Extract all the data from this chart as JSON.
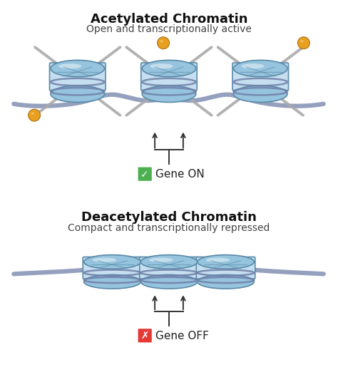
{
  "title_top": "Acetylated Chromatin",
  "subtitle_top": "Open and transcriptionally active",
  "title_bottom": "Deacetylated Chromatin",
  "subtitle_bottom": "Compact and transcriptionally repressed",
  "label_on": "Gene ON",
  "label_off": "Gene OFF",
  "bg_color": "#ffffff",
  "title_color": "#111111",
  "subtitle_color": "#444444",
  "histone_color_light": "#c5dff0",
  "histone_color_mid": "#96c4de",
  "histone_color_dark": "#5a90b5",
  "histone_edge_color": "#5a8aa8",
  "dna_color": "#7080a8",
  "acetyl_color_outer": "#e8a020",
  "acetyl_color_inner": "#f5c060",
  "tail_color": "#aaaaaa",
  "gene_on_bg": "#4caf50",
  "gene_off_bg": "#e53935",
  "arrow_color": "#333333"
}
